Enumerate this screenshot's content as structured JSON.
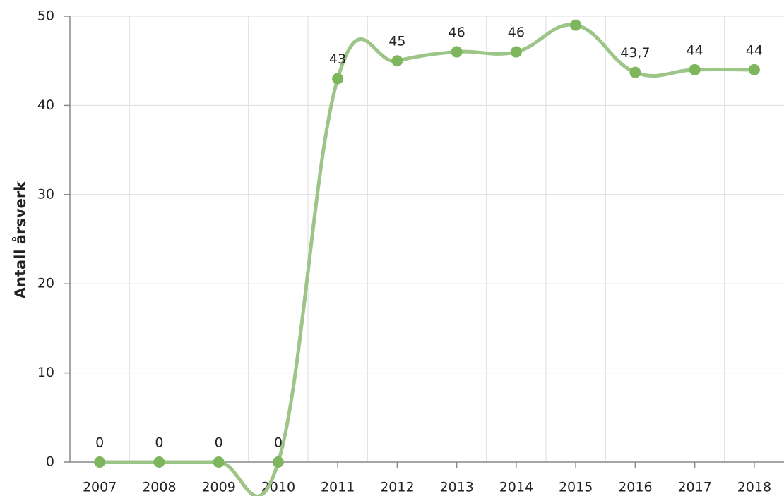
{
  "chart_data": {
    "type": "line",
    "y_label": "Antall årsverk",
    "categories": [
      "2007",
      "2008",
      "2009",
      "2010",
      "2011",
      "2012",
      "2013",
      "2014",
      "2015",
      "2016",
      "2017",
      "2018"
    ],
    "series": [
      {
        "name": "Antall årsverk",
        "color": "#9cc587",
        "marker_color": "#7db65c",
        "values": [
          0,
          0,
          0,
          0,
          43,
          45,
          46,
          46,
          49,
          43.7,
          44,
          44
        ],
        "value_labels": [
          "0",
          "0",
          "0",
          "0",
          "43",
          "45",
          "46",
          "46",
          null,
          "43,7",
          "44",
          "44"
        ]
      }
    ],
    "ylim": [
      0,
      50
    ],
    "yticks": [
      0,
      10,
      20,
      30,
      40,
      50
    ],
    "grid": true
  }
}
